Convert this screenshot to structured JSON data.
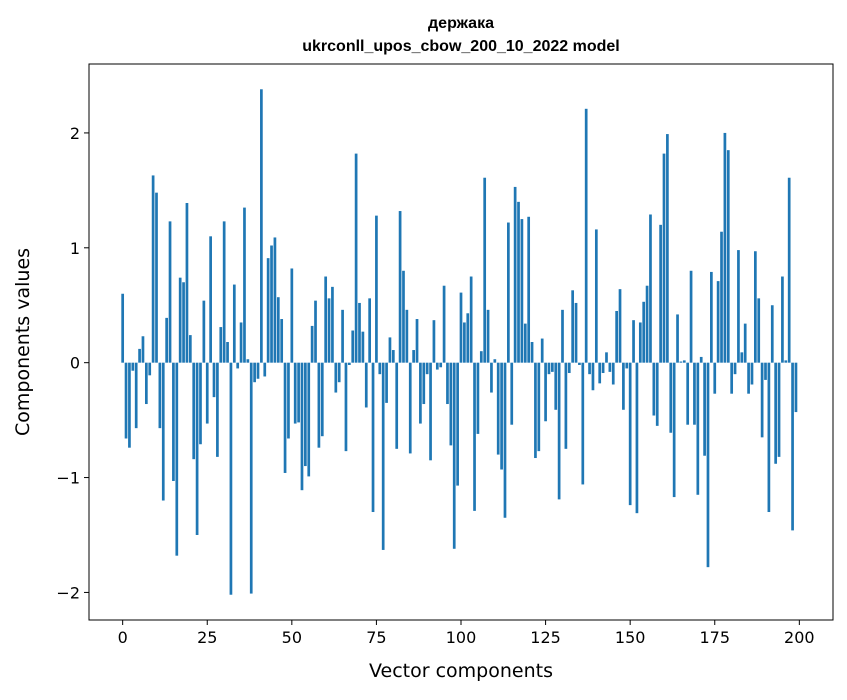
{
  "chart_data": {
    "type": "bar",
    "title_line1": "держака",
    "title_line2": "ukrconll_upos_cbow_200_10_2022 model",
    "xlabel": "Vector components",
    "ylabel": "Components values",
    "xlim": [
      -9.95,
      209.95
    ],
    "ylim": [
      -2.24,
      2.6
    ],
    "xticks": [
      0,
      25,
      50,
      75,
      100,
      125,
      150,
      175,
      200
    ],
    "xtick_labels": [
      "0",
      "25",
      "50",
      "75",
      "100",
      "125",
      "150",
      "175",
      "200"
    ],
    "yticks": [
      -2,
      -1,
      0,
      1,
      2
    ],
    "ytick_labels": [
      "−2",
      "−1",
      "0",
      "1",
      "2"
    ],
    "bar_color": "#1f77b4",
    "grid": false,
    "values": [
      0.6,
      -0.66,
      -0.74,
      -0.07,
      -0.57,
      0.12,
      0.23,
      -0.36,
      -0.11,
      1.63,
      1.48,
      -0.57,
      -1.2,
      0.39,
      1.23,
      -1.03,
      -1.68,
      0.74,
      0.7,
      1.39,
      0.24,
      -0.84,
      -1.5,
      -0.71,
      0.54,
      -0.53,
      1.1,
      -0.3,
      -0.82,
      0.31,
      1.23,
      0.18,
      -2.02,
      0.68,
      -0.05,
      0.35,
      1.35,
      0.03,
      -2.01,
      -0.17,
      -0.14,
      2.38,
      -0.12,
      0.91,
      1.02,
      1.09,
      0.57,
      0.38,
      -0.96,
      -0.66,
      0.82,
      -0.53,
      -0.52,
      -1.11,
      -0.9,
      -0.99,
      0.32,
      0.54,
      -0.74,
      -0.64,
      0.75,
      0.56,
      0.66,
      -0.26,
      -0.17,
      0.46,
      -0.77,
      -0.02,
      0.28,
      1.82,
      0.52,
      0.27,
      -0.39,
      0.56,
      -1.3,
      1.28,
      -0.1,
      -1.63,
      -0.35,
      0.22,
      0.11,
      -0.75,
      1.32,
      0.8,
      0.46,
      -0.79,
      0.11,
      0.38,
      -0.53,
      -0.36,
      -0.1,
      -0.85,
      0.37,
      -0.06,
      -0.04,
      0.67,
      -0.36,
      -0.72,
      -1.62,
      -1.07,
      0.61,
      0.35,
      0.43,
      0.75,
      -1.29,
      -0.62,
      0.1,
      1.61,
      0.46,
      -0.26,
      0.03,
      -0.8,
      -0.93,
      -1.35,
      1.22,
      -0.54,
      1.53,
      1.4,
      1.25,
      0.34,
      1.27,
      0.18,
      -0.83,
      -0.77,
      0.21,
      -0.51,
      -0.1,
      -0.08,
      -0.41,
      -1.19,
      0.46,
      -0.75,
      -0.09,
      0.63,
      0.52,
      -0.02,
      -1.06,
      2.21,
      -0.1,
      -0.24,
      1.16,
      -0.18,
      -0.09,
      0.09,
      -0.08,
      -0.19,
      0.45,
      0.64,
      -0.41,
      -0.05,
      -1.24,
      0.37,
      -1.31,
      0.35,
      0.53,
      0.67,
      1.29,
      -0.46,
      -0.55,
      1.2,
      1.82,
      1.99,
      -0.61,
      -1.17,
      0.42,
      0.01,
      0.02,
      -0.54,
      0.8,
      -0.54,
      -1.15,
      0.05,
      -0.81,
      -1.78,
      0.79,
      -0.27,
      0.71,
      1.14,
      2.0,
      1.85,
      -0.27,
      -0.1,
      0.98,
      0.09,
      0.34,
      -0.27,
      -0.19,
      0.97,
      0.56,
      -0.65,
      -0.15,
      -1.3,
      0.5,
      -0.88,
      -0.82,
      0.75,
      0.02,
      1.61,
      -1.46,
      -0.43
    ]
  }
}
